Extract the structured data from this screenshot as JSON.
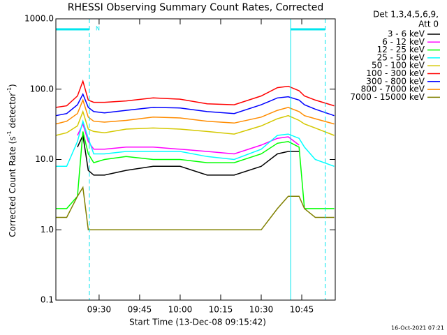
{
  "chart_data": {
    "type": "line",
    "title": "RHESSI Observing Summary Count Rates, Corrected",
    "xlabel": "Start Time (13-Dec-08 09:15:42)",
    "ylabel_parts": [
      "Corrected Count Rate (s",
      "-1",
      " detector",
      "-1",
      ")"
    ],
    "legend_header": [
      "Det 1,3,4,5,6,9,",
      "Att 0"
    ],
    "footer": "16-Oct-2021 07:21",
    "annotation": "N",
    "log_y": true,
    "night_intervals": [
      [
        554,
        566.4
      ],
      [
        640.9,
        653.7
      ]
    ],
    "xlim": [
      554,
      657.4
    ],
    "xticks": [
      {
        "value": 570,
        "label": "09:30"
      },
      {
        "value": 585,
        "label": "09:45"
      },
      {
        "value": 600,
        "label": "10:00"
      },
      {
        "value": 615,
        "label": "10:15"
      },
      {
        "value": 630,
        "label": "10:30"
      },
      {
        "value": 645,
        "label": "10:45"
      }
    ],
    "ylim": [
      0.1,
      1000
    ],
    "yticks": [
      {
        "value": 1000,
        "label": "1000.0"
      },
      {
        "value": 100,
        "label": "100.0"
      },
      {
        "value": 10,
        "label": "10.0"
      },
      {
        "value": 1,
        "label": "1.0"
      },
      {
        "value": 0.1,
        "label": "0.1"
      }
    ],
    "x": [
      554,
      558,
      562,
      564,
      566,
      568,
      572,
      580,
      590,
      600,
      610,
      620,
      630,
      636,
      640,
      644,
      646,
      650,
      657
    ],
    "series": [
      {
        "name": "3 - 6 keV",
        "color": "#000000",
        "values": [
          null,
          null,
          15,
          22,
          7,
          6,
          6,
          7,
          8,
          8,
          6,
          6,
          8,
          12,
          13,
          13,
          null,
          null,
          null
        ]
      },
      {
        "name": "6 - 12 keV",
        "color": "#ff00ff",
        "values": [
          null,
          null,
          22,
          32,
          18,
          14,
          14,
          15,
          15,
          14,
          13,
          12,
          16,
          20,
          21,
          16,
          null,
          null,
          null
        ]
      },
      {
        "name": "12 - 25 keV",
        "color": "#00ff00",
        "values": [
          2,
          2,
          3,
          25,
          12,
          9,
          10,
          11,
          10,
          10,
          9,
          9,
          12,
          17,
          18,
          15,
          2,
          2,
          2
        ]
      },
      {
        "name": "25 - 50 keV",
        "color": "#00ffff",
        "values": [
          8,
          8,
          18,
          35,
          20,
          12,
          12,
          13,
          13,
          13,
          11,
          10,
          14,
          22,
          23,
          20,
          15,
          10,
          8
        ]
      },
      {
        "name": "50 - 100 keV",
        "color": "#d4c800",
        "values": [
          22,
          24,
          30,
          48,
          27,
          25,
          24,
          27,
          28,
          27,
          25,
          23,
          30,
          38,
          42,
          36,
          32,
          28,
          22
        ]
      },
      {
        "name": "100 - 300 keV",
        "color": "#ff0000",
        "values": [
          55,
          58,
          80,
          130,
          70,
          65,
          65,
          68,
          75,
          72,
          62,
          60,
          80,
          105,
          110,
          95,
          80,
          70,
          58
        ]
      },
      {
        "name": "300 - 800 keV",
        "color": "#0000ff",
        "values": [
          42,
          45,
          60,
          85,
          55,
          48,
          46,
          50,
          55,
          54,
          48,
          45,
          60,
          75,
          78,
          70,
          60,
          52,
          42
        ]
      },
      {
        "name": "800 - 7000 keV",
        "color": "#ff8c00",
        "values": [
          32,
          35,
          45,
          70,
          40,
          35,
          34,
          36,
          40,
          39,
          35,
          33,
          40,
          50,
          55,
          48,
          42,
          38,
          32
        ]
      },
      {
        "name": "7000 - 15000 keV",
        "color": "#808000",
        "values": [
          1.5,
          1.5,
          3,
          4,
          1,
          1,
          1,
          1,
          1,
          1,
          1,
          1,
          1,
          2,
          3,
          3,
          2,
          1.5,
          1.5
        ]
      }
    ]
  }
}
